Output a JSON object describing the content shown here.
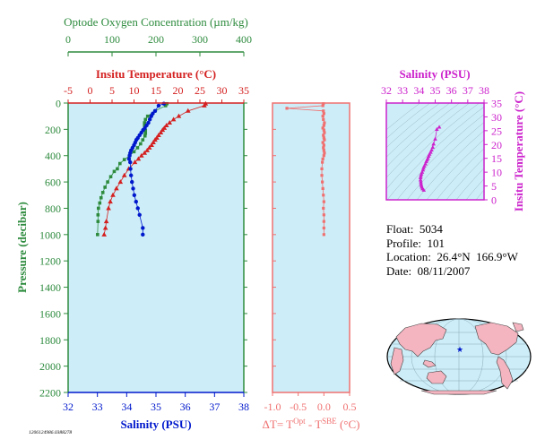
{
  "colors": {
    "panel_bg": "#cdeef8",
    "oxygen": "#2e8b3e",
    "temperature": "#d42020",
    "salinity": "#0018cc",
    "delta_t": "#f07070",
    "ts_axis": "#cc22cc",
    "pressure_axis": "#2e8b3e"
  },
  "float_info": {
    "float": "Float:  5034",
    "profile": "Profile:  101",
    "location": "Location:  26.4°N  166.9°W",
    "date": "Date:  08/11/2007"
  },
  "footer_id": "1206124986.0388278",
  "chart_data": [
    {
      "type": "scatter",
      "panel": "profiles",
      "title": "",
      "ylabel": "Pressure (decibar)",
      "ylim": [
        2200,
        0
      ],
      "yticks": [
        0,
        200,
        400,
        600,
        800,
        1000,
        1200,
        1400,
        1600,
        1800,
        2000,
        2200
      ],
      "axes": {
        "oxygen": {
          "label": "Optode Oxygen Concentration (µm/kg)",
          "range": [
            0,
            400
          ],
          "ticks": [
            0,
            100,
            200,
            300,
            400
          ]
        },
        "temperature": {
          "label": "Insitu Temperature (°C)",
          "range": [
            -5,
            35
          ],
          "ticks": [
            -5,
            0,
            5,
            10,
            15,
            20,
            25,
            30,
            35
          ]
        },
        "salinity": {
          "label": "Salinity (PSU)",
          "range": [
            32,
            38
          ],
          "ticks": [
            32,
            33,
            34,
            35,
            36,
            37,
            38
          ]
        }
      },
      "series": [
        {
          "name": "Temperature",
          "axis": "temperature",
          "x": [
            26.3,
            26.0,
            22.3,
            20.2,
            19.0,
            18.1,
            17.4,
            16.9,
            16.5,
            16.1,
            15.6,
            15.2,
            14.8,
            14.4,
            14.0,
            13.5,
            13.0,
            12.4,
            11.7,
            11.0,
            10.2,
            8.8,
            7.8,
            6.9,
            6.0,
            5.2,
            4.6,
            4.2,
            3.7,
            3.5,
            3.2
          ],
          "y": [
            5,
            20,
            60,
            100,
            125,
            150,
            170,
            190,
            205,
            225,
            245,
            265,
            280,
            300,
            320,
            340,
            360,
            380,
            400,
            425,
            450,
            500,
            550,
            600,
            650,
            700,
            750,
            800,
            900,
            950,
            1000
          ]
        },
        {
          "name": "Oxygen",
          "axis": "oxygen",
          "x": [
            225,
            222,
            198,
            181,
            176,
            174,
            174,
            175,
            176,
            176,
            175,
            170,
            165,
            158,
            150,
            140,
            128,
            118,
            112,
            105,
            97,
            90,
            84,
            79,
            75,
            72,
            69,
            68,
            68,
            67
          ],
          "y": [
            5,
            20,
            60,
            100,
            125,
            150,
            170,
            190,
            210,
            230,
            250,
            280,
            310,
            340,
            370,
            400,
            430,
            460,
            500,
            520,
            560,
            600,
            640,
            680,
            720,
            760,
            800,
            850,
            900,
            1000
          ]
        },
        {
          "name": "Salinity",
          "axis": "salinity",
          "x": [
            35.27,
            35.09,
            34.97,
            34.89,
            34.84,
            34.79,
            34.74,
            34.68,
            34.62,
            34.56,
            34.5,
            34.44,
            34.38,
            34.33,
            34.29,
            34.25,
            34.2,
            34.15,
            34.12,
            34.1,
            34.08,
            34.12,
            34.13,
            34.15,
            34.18,
            34.22,
            34.26,
            34.32,
            34.38,
            34.44,
            34.55,
            34.55
          ],
          "y": [
            5,
            20,
            60,
            80,
            100,
            125,
            150,
            170,
            190,
            205,
            225,
            245,
            265,
            280,
            300,
            320,
            340,
            360,
            380,
            400,
            425,
            450,
            500,
            550,
            600,
            650,
            700,
            750,
            800,
            850,
            950,
            1000
          ]
        }
      ]
    },
    {
      "type": "scatter",
      "panel": "delta_t",
      "xlabel": "ΔT= T",
      "xlabel_sup1": "Opt",
      "xlabel_mid": " - T",
      "xlabel_sup2": "SBE",
      "xlabel_end": " (°C)",
      "xlim": [
        -1.0,
        0.5
      ],
      "xticks": [
        -1.0,
        -0.5,
        0.0,
        0.5
      ],
      "xtick_labels": [
        "-1.0",
        "-0.5",
        "0.0",
        "0.5"
      ],
      "ylim": [
        2200,
        0
      ],
      "series": [
        {
          "name": "",
          "x": [
            -0.01,
            -0.02,
            -0.72,
            -0.01,
            0.0,
            -0.02,
            -0.01,
            0.01,
            0.0,
            -0.02,
            0.0,
            0.01,
            -0.01,
            0.0,
            0.01,
            -0.02,
            0.0,
            -0.01,
            0.0,
            0.01,
            0.0,
            -0.02,
            -0.03,
            -0.04,
            -0.04,
            -0.03,
            -0.02,
            -0.01,
            0.0,
            -0.01,
            0.0,
            0.0,
            0.0,
            0.0
          ],
          "y": [
            5,
            20,
            40,
            60,
            80,
            100,
            125,
            150,
            170,
            190,
            205,
            225,
            245,
            265,
            280,
            300,
            320,
            340,
            360,
            380,
            400,
            425,
            450,
            500,
            550,
            600,
            650,
            700,
            750,
            800,
            850,
            900,
            950,
            1000
          ]
        }
      ]
    },
    {
      "type": "scatter",
      "panel": "ts_diagram",
      "xlabel": "Salinity (PSU)",
      "ylabel": "Insitu Temperature (°C)",
      "xlim": [
        32,
        38
      ],
      "ylim": [
        0,
        35
      ],
      "xticks": [
        32,
        33,
        34,
        35,
        36,
        37,
        38
      ],
      "yticks": [
        0,
        5,
        10,
        15,
        20,
        25,
        30,
        35
      ],
      "series": [
        {
          "name": "",
          "x": [
            35.25,
            35.1,
            35.0,
            34.9,
            34.85,
            34.78,
            34.72,
            34.65,
            34.6,
            34.55,
            34.5,
            34.45,
            34.4,
            34.33,
            34.28,
            34.25,
            34.2,
            34.15,
            34.12,
            34.1,
            34.1,
            34.12,
            34.13,
            34.15,
            34.18,
            34.22,
            34.3
          ],
          "y": [
            26.3,
            25.5,
            22.0,
            20.2,
            19.0,
            18.0,
            17.2,
            16.5,
            15.8,
            15.0,
            14.4,
            13.8,
            13.0,
            12.2,
            11.5,
            10.8,
            10.0,
            9.3,
            8.6,
            8.0,
            7.2,
            6.5,
            5.8,
            5.2,
            4.6,
            4.0,
            3.5
          ]
        }
      ]
    }
  ]
}
